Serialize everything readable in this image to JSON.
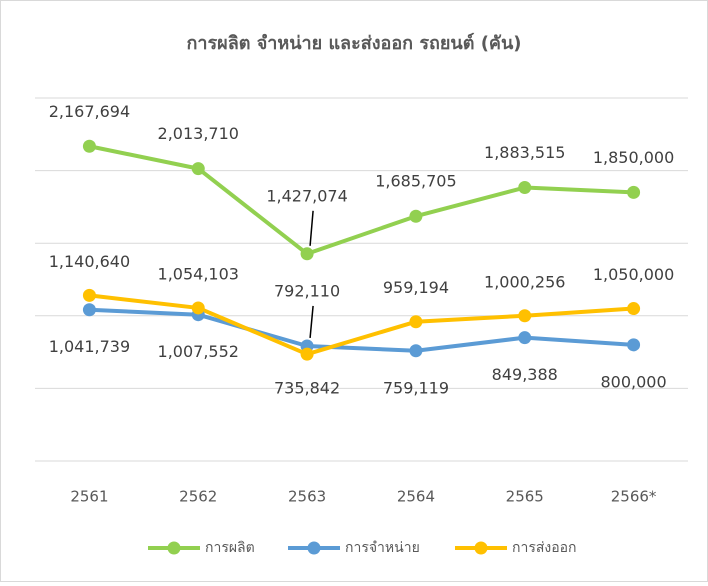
{
  "chart_data": {
    "type": "line",
    "title": "การผลิต จำหน่าย และส่งออก รถยนต์ (คัน)",
    "categories": [
      "2561",
      "2562",
      "2563",
      "2564",
      "2565",
      "2566*"
    ],
    "ylim": [
      0,
      2500000
    ],
    "yticks": [
      0,
      500000,
      1000000,
      1500000,
      2000000,
      2500000
    ],
    "grid": true,
    "legend": "bottom",
    "series": [
      {
        "name": "การผลิต",
        "color": "#92d050",
        "values": [
          2167694,
          2013710,
          1427074,
          1685705,
          1883515,
          1850000
        ],
        "value_labels": [
          "2,167,694",
          "2,013,710",
          "1,427,074",
          "1,685,705",
          "1,883,515",
          "1,850,000"
        ]
      },
      {
        "name": "การจำหน่าย",
        "color": "#5b9bd5",
        "values": [
          1041739,
          1007552,
          792110,
          759119,
          849388,
          800000
        ],
        "value_labels": [
          "1,041,739",
          "1,007,552",
          "792,110",
          "759,119",
          "849,388",
          "800,000"
        ]
      },
      {
        "name": "การส่งออก",
        "color": "#ffc000",
        "values": [
          1140640,
          1054103,
          735842,
          959194,
          1000256,
          1050000
        ],
        "value_labels": [
          "1,140,640",
          "1,054,103",
          "735,842",
          "959,194",
          "1,000,256",
          "1,050,000"
        ]
      }
    ]
  }
}
